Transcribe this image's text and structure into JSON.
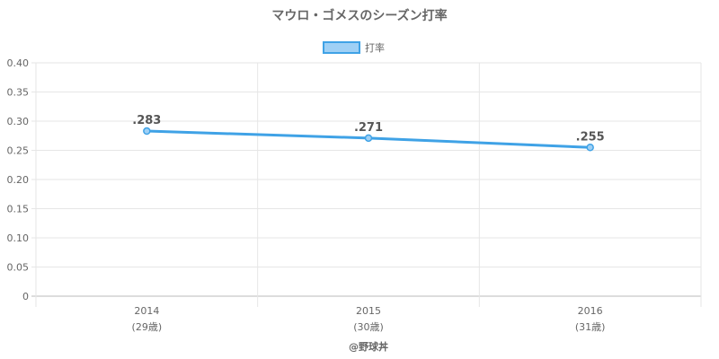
{
  "chart_data": {
    "type": "line",
    "title": "マウロ・ゴメスのシーズン打率",
    "legend_position": "top-center",
    "categories": [
      "2014",
      "2015",
      "2016"
    ],
    "category_sublabels": [
      "(29歳)",
      "(30歳)",
      "(31歳)"
    ],
    "series": [
      {
        "name": "打率",
        "values": [
          0.283,
          0.271,
          0.255
        ],
        "data_labels": [
          ".283",
          ".271",
          ".255"
        ]
      }
    ],
    "ylim": [
      0,
      0.4
    ],
    "yticks": [
      "0",
      "0.05",
      "0.10",
      "0.15",
      "0.20",
      "0.25",
      "0.30",
      "0.35",
      "0.40"
    ],
    "grid": true,
    "colors": {
      "line": "#3fa2e6",
      "legend_fill": "#9fd0f5",
      "grid": "#e6e6e6",
      "axis": "#bbbbbb"
    }
  },
  "credit": "@野球丼"
}
